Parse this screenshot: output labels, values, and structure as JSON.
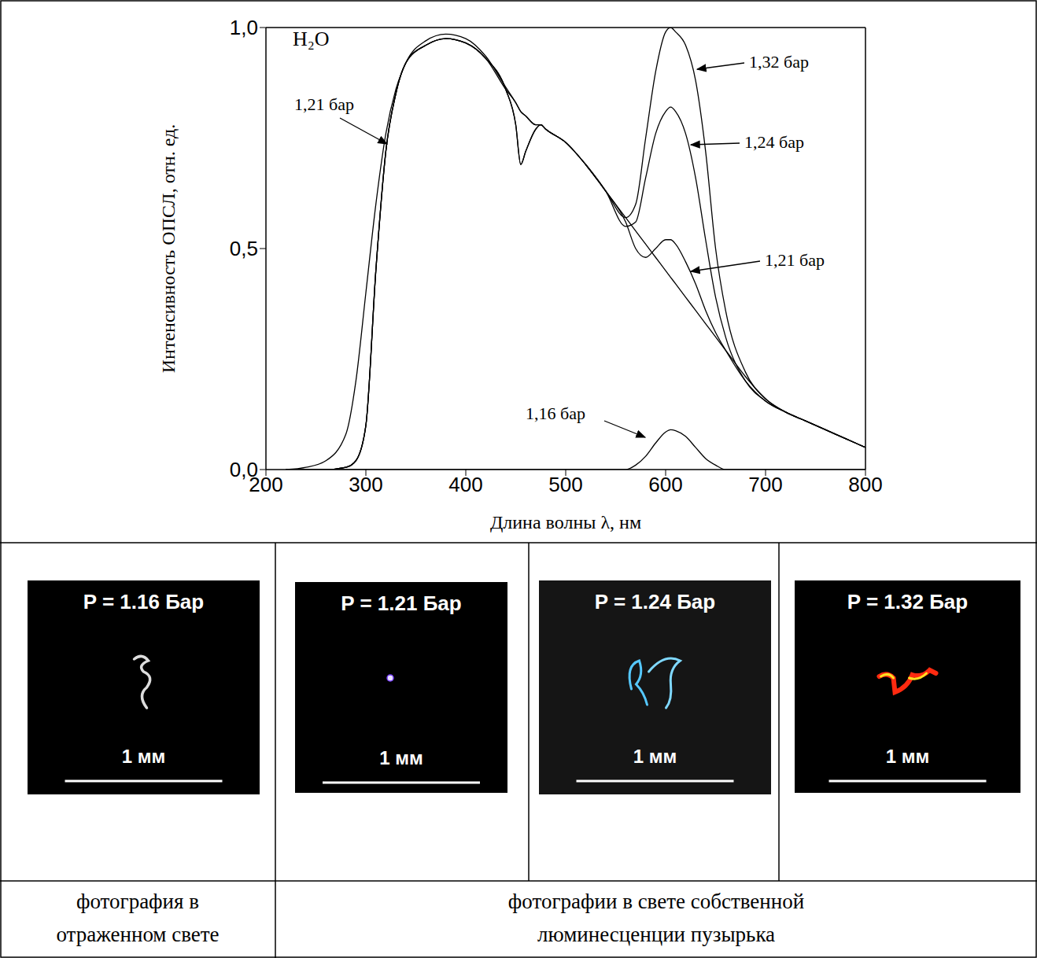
{
  "chart_data": {
    "type": "line",
    "x_label": "Длина волны λ, нм",
    "y_label": "Интенсивность ОПСЛ, отн. ед.",
    "x": [
      220,
      240,
      260,
      280,
      290,
      300,
      310,
      320,
      330,
      340,
      360,
      380,
      400,
      420,
      440,
      450,
      455,
      460,
      470,
      475,
      480,
      500,
      520,
      540,
      560,
      570,
      580,
      590,
      600,
      605,
      610,
      620,
      630,
      640,
      650,
      660,
      680,
      700,
      720,
      740,
      760,
      780,
      800
    ],
    "series": [
      {
        "name": "1,32 бар",
        "color": "#000000",
        "values": [
          0,
          0,
          0,
          0.005,
          0.02,
          0.1,
          0.45,
          0.72,
          0.85,
          0.92,
          0.96,
          0.975,
          0.965,
          0.93,
          0.86,
          0.78,
          0.69,
          0.72,
          0.77,
          0.78,
          0.77,
          0.74,
          0.69,
          0.63,
          0.57,
          0.6,
          0.75,
          0.9,
          0.99,
          1.0,
          0.99,
          0.96,
          0.88,
          0.72,
          0.5,
          0.36,
          0.22,
          0.16,
          0.13,
          0.11,
          0.09,
          0.07,
          0.05
        ]
      },
      {
        "name": "1,24 бар",
        "color": "#000000",
        "values": [
          0,
          0,
          0,
          0.005,
          0.02,
          0.1,
          0.45,
          0.72,
          0.85,
          0.92,
          0.96,
          0.975,
          0.965,
          0.93,
          0.86,
          0.78,
          0.69,
          0.72,
          0.77,
          0.78,
          0.77,
          0.74,
          0.69,
          0.63,
          0.55,
          0.56,
          0.66,
          0.76,
          0.81,
          0.82,
          0.81,
          0.76,
          0.66,
          0.52,
          0.39,
          0.3,
          0.2,
          0.155,
          0.13,
          0.11,
          0.09,
          0.07,
          0.05
        ]
      },
      {
        "name": "1,21 бар",
        "color": "#000000",
        "values": [
          0,
          0.005,
          0.02,
          0.08,
          0.2,
          0.4,
          0.6,
          0.76,
          0.86,
          0.92,
          0.97,
          0.985,
          0.975,
          0.935,
          0.865,
          0.83,
          0.81,
          0.8,
          0.78,
          0.78,
          0.77,
          0.74,
          0.69,
          0.63,
          0.56,
          0.5,
          0.48,
          0.5,
          0.52,
          0.52,
          0.51,
          0.47,
          0.42,
          0.36,
          0.31,
          0.27,
          0.2,
          0.155,
          0.13,
          0.11,
          0.09,
          0.07,
          0.05
        ]
      },
      {
        "color": "#000000",
        "values": [
          0,
          0,
          0,
          0.005,
          0.02,
          0.1,
          0.45,
          0.72,
          0.85,
          0.92,
          0.96,
          0.975,
          0.965,
          0.93,
          0.86,
          0.83,
          0.81,
          0.8,
          0.78,
          0.78,
          0.77,
          0.74,
          0.69,
          0.63,
          0.57,
          0.54,
          0.51,
          0.48,
          0.45,
          0.435,
          0.42,
          0.39,
          0.36,
          0.33,
          0.3,
          0.27,
          0.21,
          0.16,
          0.13,
          0.11,
          0.09,
          0.07,
          0.05
        ]
      },
      {
        "name": "1,16 бар",
        "color": "#000000",
        "values": [
          0,
          0,
          0,
          0,
          0,
          0,
          0,
          0,
          0,
          0,
          0,
          0,
          0,
          0,
          0,
          0,
          0,
          0,
          0,
          0,
          0,
          0,
          0,
          0,
          0,
          0.01,
          0.03,
          0.06,
          0.085,
          0.09,
          0.088,
          0.075,
          0.05,
          0.025,
          0.01,
          0,
          0,
          0,
          0,
          0,
          0,
          0,
          0
        ]
      }
    ],
    "xlim": [
      200,
      800
    ],
    "xticks": [
      200,
      300,
      400,
      500,
      600,
      700,
      800
    ],
    "ylim": [
      0,
      1.0
    ],
    "yticks": [
      {
        "value": 0,
        "label": "0,0"
      },
      {
        "value": 0.5,
        "label": "0,5"
      },
      {
        "value": 1.0,
        "label": "1,0"
      }
    ],
    "annotations": [
      {
        "text": "H₂O"
      },
      {
        "text": "1,21 бар"
      },
      {
        "text": "1,32 бар"
      },
      {
        "text": "1,24 бар"
      },
      {
        "text": "1,21 бар"
      },
      {
        "text": "1,16 бар"
      }
    ]
  },
  "photos": [
    {
      "label": "P = 1.16 Бар",
      "scale": "1 мм"
    },
    {
      "label": "P = 1.21 Бар",
      "scale": "1 мм"
    },
    {
      "label": "P = 1.24 Бар",
      "scale": "1 мм"
    },
    {
      "label": "P = 1.32 Бар",
      "scale": "1 мм"
    }
  ],
  "captions": [
    "фотография в отраженном свете",
    "фотографии в свете собственной люминесценции пузырька"
  ]
}
